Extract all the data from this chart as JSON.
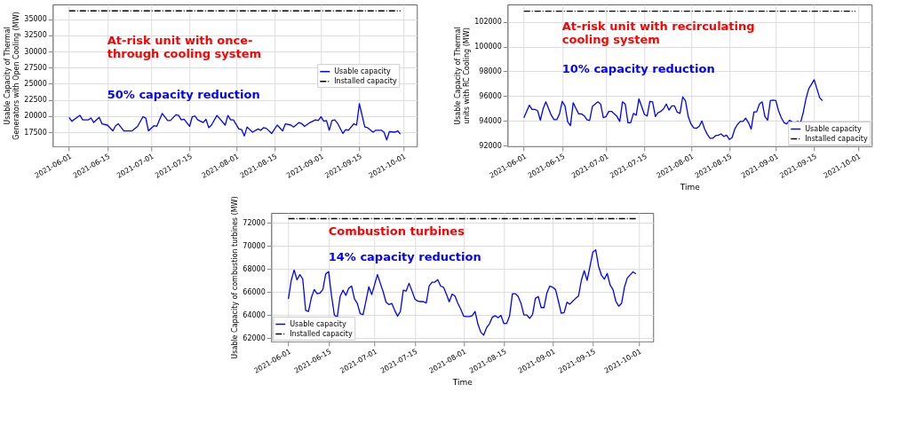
{
  "chart_data": [
    {
      "type": "line",
      "ylabel": "Usable Capacity of Thermal Generators with Open Cooling (MW)",
      "xlim": [
        "2021-05-26",
        "2021-10-06"
      ],
      "xticks": [
        "2021-06-01",
        "2021-06-15",
        "2021-07-01",
        "2021-07-15",
        "2021-08-01",
        "2021-08-15",
        "2021-09-01",
        "2021-09-15",
        "2021-10-01"
      ],
      "ylim": [
        15300,
        37300
      ],
      "yticks": [
        17500,
        20000,
        22500,
        25000,
        27500,
        30000,
        32500,
        35000
      ],
      "grid": true,
      "legend": "right",
      "annotations": [
        "At-risk unit with once-\nthrough cooling system",
        "50% capacity reduction"
      ],
      "series": [
        {
          "name": "Usable capacity",
          "color": "#0000ff",
          "line_style": "solid",
          "x": [
            "2021-06-01",
            "2021-06-02",
            "2021-06-05",
            "2021-06-06",
            "2021-06-08",
            "2021-06-09",
            "2021-06-10",
            "2021-06-12",
            "2021-06-13",
            "2021-06-15",
            "2021-06-17",
            "2021-06-18",
            "2021-06-19",
            "2021-06-21",
            "2021-06-24",
            "2021-06-26",
            "2021-06-28",
            "2021-06-29",
            "2021-06-30",
            "2021-07-02",
            "2021-07-03",
            "2021-07-05",
            "2021-07-07",
            "2021-07-08",
            "2021-07-10",
            "2021-07-11",
            "2021-07-12",
            "2021-07-13",
            "2021-07-15",
            "2021-07-16",
            "2021-07-17",
            "2021-07-18",
            "2021-07-20",
            "2021-07-21",
            "2021-07-22",
            "2021-07-23",
            "2021-07-25",
            "2021-07-28",
            "2021-07-29",
            "2021-07-30",
            "2021-07-31",
            "2021-08-02",
            "2021-08-03",
            "2021-08-04",
            "2021-08-05",
            "2021-08-07",
            "2021-08-09",
            "2021-08-10",
            "2021-08-11",
            "2021-08-12",
            "2021-08-14",
            "2021-08-16",
            "2021-08-18",
            "2021-08-19",
            "2021-08-21",
            "2021-08-22",
            "2021-08-24",
            "2021-08-25",
            "2021-08-26",
            "2021-08-28",
            "2021-08-30",
            "2021-08-31",
            "2021-09-01",
            "2021-09-02",
            "2021-09-03",
            "2021-09-04",
            "2021-09-05",
            "2021-09-06",
            "2021-09-07",
            "2021-09-09",
            "2021-09-10",
            "2021-09-11",
            "2021-09-13",
            "2021-09-14",
            "2021-09-15",
            "2021-09-17",
            "2021-09-18",
            "2021-09-20",
            "2021-09-21",
            "2021-09-23",
            "2021-09-24",
            "2021-09-25",
            "2021-09-26",
            "2021-09-28",
            "2021-09-29",
            "2021-09-30"
          ],
          "values": [
            19800,
            19200,
            20100,
            19400,
            19400,
            19700,
            19000,
            19800,
            18800,
            18600,
            17700,
            18500,
            18800,
            17700,
            17700,
            18400,
            19900,
            19700,
            17700,
            18500,
            18400,
            20400,
            19300,
            19300,
            20200,
            20100,
            19400,
            19500,
            18400,
            19900,
            20000,
            19400,
            19000,
            19500,
            18200,
            18600,
            20100,
            18600,
            20100,
            19400,
            19400,
            18000,
            17900,
            16900,
            18300,
            17500,
            18000,
            17800,
            18200,
            18100,
            17300,
            18600,
            17700,
            18800,
            18600,
            18300,
            19000,
            18800,
            18400,
            19000,
            19400,
            19300,
            19900,
            19200,
            19300,
            17800,
            19300,
            19400,
            18900,
            17300,
            17900,
            17800,
            18800,
            18600,
            21900,
            18300,
            18200,
            17500,
            17800,
            17800,
            17500,
            16300,
            17600,
            17500,
            17700,
            17200
          ]
        },
        {
          "name": "Installed capacity",
          "color": "#000000",
          "line_style": "dashdot",
          "x": [
            "2021-06-01",
            "2021-09-30"
          ],
          "values": [
            36300,
            36300
          ]
        }
      ]
    },
    {
      "type": "line",
      "ylabel": "Usable Capacity of Thermal units with RC Cooling (MW)",
      "xlabel": "Time",
      "xlim": [
        "2021-05-26",
        "2021-10-06"
      ],
      "xticks": [
        "2021-06-01",
        "2021-06-15",
        "2021-07-01",
        "2021-07-15",
        "2021-08-01",
        "2021-08-15",
        "2021-09-01",
        "2021-09-15",
        "2021-10-01"
      ],
      "ylim": [
        91950,
        103400
      ],
      "yticks": [
        92000,
        94000,
        96000,
        98000,
        100000,
        102000
      ],
      "grid": true,
      "legend": "bottom right",
      "annotations": [
        "At-risk unit with recirculating\ncooling system",
        "10% capacity reduction"
      ],
      "series": [
        {
          "name": "Usable capacity",
          "color": "#0000ff",
          "line_style": "solid",
          "x": [
            "2021-06-01",
            "2021-06-03",
            "2021-06-04",
            "2021-06-05",
            "2021-06-06",
            "2021-06-07",
            "2021-06-08",
            "2021-06-09",
            "2021-06-11",
            "2021-06-12",
            "2021-06-13",
            "2021-06-14",
            "2021-06-15",
            "2021-06-16",
            "2021-06-17",
            "2021-06-18",
            "2021-06-19",
            "2021-06-20",
            "2021-06-21",
            "2021-06-22",
            "2021-06-23",
            "2021-06-24",
            "2021-06-25",
            "2021-06-26",
            "2021-06-28",
            "2021-06-29",
            "2021-06-30",
            "2021-07-01",
            "2021-07-02",
            "2021-07-03",
            "2021-07-05",
            "2021-07-06",
            "2021-07-07",
            "2021-07-08",
            "2021-07-09",
            "2021-07-10",
            "2021-07-11",
            "2021-07-12",
            "2021-07-13",
            "2021-07-14",
            "2021-07-15",
            "2021-07-16",
            "2021-07-17",
            "2021-07-18",
            "2021-07-19",
            "2021-07-20",
            "2021-07-21",
            "2021-07-22",
            "2021-07-23",
            "2021-07-24",
            "2021-07-25",
            "2021-07-26",
            "2021-07-27",
            "2021-07-28",
            "2021-07-29",
            "2021-07-30",
            "2021-07-31",
            "2021-08-01",
            "2021-08-02",
            "2021-08-03",
            "2021-08-04",
            "2021-08-05",
            "2021-08-06",
            "2021-08-07",
            "2021-08-08",
            "2021-08-09",
            "2021-08-10",
            "2021-08-11",
            "2021-08-12",
            "2021-08-13",
            "2021-08-14",
            "2021-08-15",
            "2021-08-16",
            "2021-08-17",
            "2021-08-18",
            "2021-08-19",
            "2021-08-20",
            "2021-08-21",
            "2021-08-22",
            "2021-08-23",
            "2021-08-24",
            "2021-08-25",
            "2021-08-26",
            "2021-08-27",
            "2021-08-28",
            "2021-08-29",
            "2021-08-30",
            "2021-08-31",
            "2021-09-01",
            "2021-09-02",
            "2021-09-03",
            "2021-09-04",
            "2021-09-05",
            "2021-09-06",
            "2021-09-07",
            "2021-09-08",
            "2021-09-09",
            "2021-09-10",
            "2021-09-11",
            "2021-09-12",
            "2021-09-13",
            "2021-09-15",
            "2021-09-16",
            "2021-09-17",
            "2021-09-18"
          ],
          "values": [
            94260,
            95270,
            94930,
            94930,
            94830,
            94060,
            94970,
            95540,
            94460,
            94100,
            94100,
            94570,
            95580,
            95210,
            93920,
            93620,
            95470,
            95010,
            94570,
            94570,
            94420,
            94100,
            94040,
            95170,
            95540,
            95370,
            94260,
            94360,
            94770,
            94770,
            94360,
            93960,
            95540,
            95370,
            93860,
            93860,
            94610,
            94460,
            95780,
            95170,
            94530,
            94400,
            95580,
            95540,
            94360,
            94670,
            94770,
            94970,
            95370,
            94870,
            95210,
            95210,
            94710,
            94610,
            95940,
            95620,
            94360,
            93760,
            93450,
            93410,
            93560,
            94000,
            93350,
            92910,
            92610,
            92610,
            92810,
            92850,
            92950,
            92750,
            92850,
            92510,
            92650,
            93350,
            93720,
            93960,
            93960,
            94220,
            93860,
            93350,
            94730,
            94730,
            95370,
            95540,
            94360,
            94060,
            95640,
            95680,
            95640,
            94810,
            94260,
            93860,
            93760,
            94060,
            93920,
            93860,
            93960,
            93860,
            94670,
            95780,
            96590,
            97330,
            96590,
            95880,
            95640
          ]
        },
        {
          "name": "Installed capacity",
          "color": "#000000",
          "line_style": "dashdot",
          "x": [
            "2021-06-01",
            "2021-09-30"
          ],
          "values": [
            102850,
            102850
          ]
        }
      ]
    },
    {
      "type": "line",
      "ylabel": "Usable Capacity of combustion turbines (MW)",
      "xlabel": "Time",
      "xlim": [
        "2021-05-26",
        "2021-10-06"
      ],
      "xticks": [
        "2021-06-01",
        "2021-06-15",
        "2021-07-01",
        "2021-07-15",
        "2021-08-01",
        "2021-08-15",
        "2021-09-01",
        "2021-09-15",
        "2021-10-01"
      ],
      "ylim": [
        61700,
        72880
      ],
      "yticks": [
        62000,
        64000,
        66000,
        68000,
        70000,
        72000
      ],
      "grid": true,
      "legend": "bottom left",
      "annotations": [
        "Combustion turbines",
        "14% capacity reduction"
      ],
      "series": [
        {
          "name": "Usable capacity",
          "color": "#0000ff",
          "line_style": "solid",
          "x": [
            "2021-06-01",
            "2021-06-02",
            "2021-06-03",
            "2021-06-04",
            "2021-06-05",
            "2021-06-06",
            "2021-06-07",
            "2021-06-08",
            "2021-06-09",
            "2021-06-10",
            "2021-06-11",
            "2021-06-12",
            "2021-06-13",
            "2021-06-14",
            "2021-06-15",
            "2021-06-16",
            "2021-06-17",
            "2021-06-18",
            "2021-06-19",
            "2021-06-20",
            "2021-06-21",
            "2021-06-22",
            "2021-06-23",
            "2021-06-24",
            "2021-06-25",
            "2021-06-26",
            "2021-06-27",
            "2021-06-28",
            "2021-06-29",
            "2021-06-30",
            "2021-07-01",
            "2021-07-02",
            "2021-07-03",
            "2021-07-04",
            "2021-07-05",
            "2021-07-06",
            "2021-07-07",
            "2021-07-08",
            "2021-07-09",
            "2021-07-10",
            "2021-07-11",
            "2021-07-12",
            "2021-07-13",
            "2021-07-14",
            "2021-07-15",
            "2021-07-16",
            "2021-07-17",
            "2021-07-18",
            "2021-07-19",
            "2021-07-20",
            "2021-07-21",
            "2021-07-22",
            "2021-07-23",
            "2021-07-24",
            "2021-07-25",
            "2021-07-26",
            "2021-07-27",
            "2021-07-28",
            "2021-07-29",
            "2021-07-30",
            "2021-07-31",
            "2021-08-01",
            "2021-08-02",
            "2021-08-03",
            "2021-08-04",
            "2021-08-05",
            "2021-08-06",
            "2021-08-07",
            "2021-08-08",
            "2021-08-09",
            "2021-08-10",
            "2021-08-11",
            "2021-08-12",
            "2021-08-13",
            "2021-08-14",
            "2021-08-15",
            "2021-08-16",
            "2021-08-17",
            "2021-08-18",
            "2021-08-19",
            "2021-08-20",
            "2021-08-21",
            "2021-08-22",
            "2021-08-23",
            "2021-08-24",
            "2021-08-25",
            "2021-08-26",
            "2021-08-27",
            "2021-08-28",
            "2021-08-29",
            "2021-08-30",
            "2021-08-31",
            "2021-09-01",
            "2021-09-02",
            "2021-09-03",
            "2021-09-04",
            "2021-09-05",
            "2021-09-06",
            "2021-09-07",
            "2021-09-08",
            "2021-09-09",
            "2021-09-10",
            "2021-09-11",
            "2021-09-12",
            "2021-09-13",
            "2021-09-14",
            "2021-09-15",
            "2021-09-16",
            "2021-09-17",
            "2021-09-18",
            "2021-09-19",
            "2021-09-20",
            "2021-09-21",
            "2021-09-22",
            "2021-09-23",
            "2021-09-24",
            "2021-09-25",
            "2021-09-26",
            "2021-09-27",
            "2021-09-29",
            "2021-09-30"
          ],
          "values": [
            65410,
            67020,
            67920,
            67060,
            67520,
            67120,
            64410,
            64310,
            65510,
            66220,
            65860,
            65920,
            66220,
            67580,
            67780,
            65710,
            64010,
            63810,
            65610,
            66160,
            65710,
            66320,
            66520,
            65410,
            65010,
            64110,
            64050,
            65210,
            66460,
            65780,
            66620,
            67520,
            66760,
            66020,
            65110,
            64910,
            65010,
            64410,
            63910,
            64310,
            66160,
            66080,
            66760,
            66120,
            65410,
            65210,
            65170,
            65170,
            65050,
            66520,
            66860,
            66860,
            67080,
            66520,
            66420,
            65820,
            65150,
            65820,
            65650,
            65010,
            64510,
            63910,
            63870,
            63870,
            63950,
            64310,
            63200,
            62500,
            62260,
            62900,
            63240,
            63810,
            63950,
            63770,
            63970,
            63270,
            63270,
            63910,
            65860,
            65860,
            65610,
            65010,
            64010,
            64010,
            63710,
            64050,
            65450,
            65610,
            64650,
            64650,
            65920,
            66520,
            66420,
            66220,
            65210,
            64150,
            64210,
            65110,
            64950,
            65210,
            65450,
            65650,
            67020,
            67860,
            67020,
            68220,
            69470,
            69670,
            68220,
            67460,
            67120,
            67620,
            66620,
            66220,
            65210,
            64770,
            65010,
            66420,
            67220,
            67760,
            67580
          ]
        },
        {
          "name": "Installed capacity",
          "color": "#000000",
          "line_style": "dashdot",
          "x": [
            "2021-06-01",
            "2021-09-30"
          ],
          "values": [
            72380,
            72380
          ]
        }
      ]
    }
  ]
}
